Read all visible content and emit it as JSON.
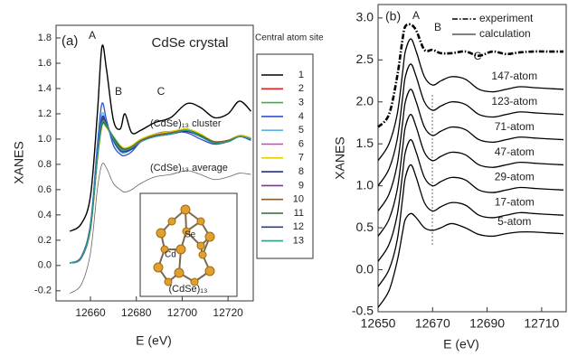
{
  "panels": [
    {
      "type": "line",
      "panel_label": "(a)",
      "title": "CdSe crystal",
      "xlabel": "E (eV)",
      "ylabel": "XANES",
      "annotations": [
        "A",
        "B",
        "C",
        "(CdSe)₁₃ cluster",
        "(CdSe)₁₃ average"
      ],
      "legend_title": "Central atom site",
      "inset_labels": [
        "Se",
        "Cd",
        "(CdSe)₁₃"
      ],
      "xlim": [
        12645,
        12731
      ],
      "xticks": [
        12660,
        12680,
        12700,
        12720
      ],
      "ylim": [
        -0.28,
        1.9
      ],
      "yticks": [
        -0.2,
        {
          "value": 0,
          "label": "0.0"
        },
        0.2,
        0.4,
        0.6,
        0.8,
        {
          "value": 1,
          "label": "1.0"
        },
        1.2,
        1.4,
        1.6,
        1.8
      ],
      "x": [
        12651,
        12656,
        12660,
        12663,
        12665,
        12667,
        12670,
        12673,
        12675,
        12678,
        12682,
        12688,
        12695,
        12702,
        12708,
        12714,
        12720,
        12725,
        12730
      ],
      "series": [
        {
          "name": "1",
          "color": "#000000",
          "values": [
            0.02,
            0.06,
            0.3,
            0.85,
            1.12,
            1.1,
            1.0,
            0.92,
            0.9,
            0.92,
            0.98,
            1.02,
            1.04,
            1.07,
            1.02,
            0.97,
            0.98,
            1.02,
            1.0
          ]
        },
        {
          "name": "2",
          "color": "#e02020",
          "values": [
            0.02,
            0.06,
            0.31,
            0.88,
            1.15,
            1.12,
            1.0,
            0.93,
            0.91,
            0.93,
            0.99,
            1.03,
            1.05,
            1.08,
            1.03,
            0.97,
            0.98,
            1.02,
            1.0
          ]
        },
        {
          "name": "3",
          "color": "#3cb043",
          "values": [
            0.02,
            0.06,
            0.29,
            0.84,
            1.1,
            1.1,
            1.02,
            0.95,
            0.93,
            0.94,
            0.99,
            1.03,
            1.05,
            1.08,
            1.04,
            0.98,
            0.99,
            1.03,
            1.01
          ]
        },
        {
          "name": "4",
          "color": "#3050d0",
          "values": [
            0.02,
            0.07,
            0.33,
            0.95,
            1.28,
            1.15,
            0.95,
            0.88,
            0.87,
            0.9,
            0.98,
            1.04,
            1.06,
            1.05,
            1.0,
            0.96,
            0.98,
            1.02,
            0.99
          ]
        },
        {
          "name": "5",
          "color": "#5ab4e0",
          "values": [
            0.02,
            0.06,
            0.32,
            0.9,
            1.2,
            1.12,
            0.98,
            0.9,
            0.89,
            0.92,
            0.98,
            1.02,
            1.04,
            1.07,
            1.02,
            0.97,
            0.98,
            1.02,
            1.0
          ]
        },
        {
          "name": "6",
          "color": "#d040c0",
          "values": [
            0.02,
            0.06,
            0.3,
            0.86,
            1.13,
            1.1,
            1.0,
            0.93,
            0.91,
            0.93,
            0.99,
            1.03,
            1.05,
            1.07,
            1.03,
            0.97,
            0.98,
            1.02,
            1.0
          ]
        },
        {
          "name": "7",
          "color": "#e8d000",
          "values": [
            0.02,
            0.06,
            0.28,
            0.83,
            1.1,
            1.09,
            1.01,
            0.95,
            0.93,
            0.95,
            1.0,
            1.04,
            1.06,
            1.08,
            1.04,
            0.98,
            0.99,
            1.03,
            1.01
          ]
        },
        {
          "name": "8",
          "color": "#203080",
          "values": [
            0.02,
            0.06,
            0.3,
            0.86,
            1.14,
            1.11,
            1.0,
            0.92,
            0.9,
            0.92,
            0.98,
            1.02,
            1.04,
            1.07,
            1.02,
            0.97,
            0.98,
            1.02,
            1.0
          ]
        },
        {
          "name": "9",
          "color": "#8030a0",
          "values": [
            0.02,
            0.06,
            0.31,
            0.87,
            1.16,
            1.11,
            0.99,
            0.91,
            0.9,
            0.92,
            0.98,
            1.02,
            1.04,
            1.06,
            1.02,
            0.97,
            0.98,
            1.02,
            1.0
          ]
        },
        {
          "name": "10",
          "color": "#8b5a2b",
          "values": [
            0.02,
            0.06,
            0.29,
            0.85,
            1.12,
            1.1,
            1.01,
            0.94,
            0.92,
            0.94,
            0.99,
            1.03,
            1.05,
            1.07,
            1.03,
            0.98,
            0.99,
            1.02,
            1.0
          ]
        },
        {
          "name": "11",
          "color": "#2e6b2e",
          "values": [
            0.02,
            0.06,
            0.3,
            0.85,
            1.11,
            1.1,
            1.01,
            0.94,
            0.92,
            0.93,
            0.98,
            1.02,
            1.04,
            1.07,
            1.03,
            0.97,
            0.98,
            1.02,
            1.0
          ]
        },
        {
          "name": "12",
          "color": "#283c8c",
          "values": [
            0.02,
            0.06,
            0.31,
            0.88,
            1.17,
            1.12,
            0.99,
            0.91,
            0.9,
            0.92,
            0.98,
            1.02,
            1.04,
            1.06,
            1.02,
            0.97,
            0.98,
            1.02,
            1.0
          ]
        },
        {
          "name": "13",
          "color": "#2a9d8f",
          "values": [
            0.02,
            0.06,
            0.3,
            0.86,
            1.13,
            1.11,
            1.0,
            0.92,
            0.91,
            0.93,
            0.98,
            1.02,
            1.04,
            1.07,
            1.02,
            0.97,
            0.98,
            1.02,
            1.0
          ]
        },
        {
          "color": "#666666",
          "values": [
            -0.22,
            -0.15,
            0.1,
            0.6,
            0.8,
            0.77,
            0.65,
            0.6,
            0.58,
            0.6,
            0.65,
            0.7,
            0.72,
            0.75,
            0.72,
            0.68,
            0.7,
            0.73,
            0.72
          ]
        },
        {
          "color": "#000000",
          "values": [
            0.27,
            0.33,
            0.55,
            1.2,
            1.73,
            1.55,
            1.15,
            1.08,
            1.2,
            1.05,
            1.07,
            1.13,
            1.17,
            1.28,
            1.25,
            1.17,
            1.2,
            1.3,
            1.22
          ]
        }
      ]
    },
    {
      "type": "line",
      "panel_label": "(b)",
      "xlabel": "E (eV)",
      "ylabel": "XANES",
      "annotations": [
        "A",
        "B",
        "C"
      ],
      "legend_calculation": "calculation",
      "xlim": [
        12650,
        12719
      ],
      "xticks": [
        12650,
        12670,
        12690,
        12710
      ],
      "ylim": [
        -0.5,
        3.16
      ],
      "yticks": [
        -0.5,
        {
          "value": 0,
          "label": "0.0"
        },
        0.5,
        {
          "value": 1,
          "label": "1.0"
        },
        1.5,
        {
          "value": 2,
          "label": "2.0"
        },
        2.5,
        {
          "value": 3,
          "label": "3.0"
        }
      ],
      "x": [
        12650,
        12654,
        12657,
        12659,
        12660,
        12662,
        12664,
        12667,
        12670,
        12673,
        12677,
        12682,
        12687,
        12692,
        12697,
        12702,
        12707,
        12712,
        12718
      ],
      "series": [
        {
          "name": "experiment",
          "color": "#000000",
          "values": [
            1.7,
            1.85,
            2.3,
            2.75,
            2.9,
            2.92,
            2.85,
            2.62,
            2.62,
            2.58,
            2.58,
            2.6,
            2.55,
            2.6,
            2.57,
            2.59,
            2.6,
            2.6,
            2.6
          ]
        },
        {
          "name": "147-atom",
          "color": "#000000",
          "values": [
            1.3,
            1.5,
            1.85,
            2.35,
            2.6,
            2.75,
            2.6,
            2.3,
            2.2,
            2.25,
            2.3,
            2.27,
            2.15,
            2.12,
            2.15,
            2.18,
            2.17,
            2.16,
            2.15
          ]
        },
        {
          "name": "123-atom",
          "color": "#000000",
          "values": [
            1.0,
            1.2,
            1.55,
            2.05,
            2.3,
            2.45,
            2.3,
            2.0,
            1.9,
            1.95,
            2.0,
            1.97,
            1.85,
            1.82,
            1.85,
            1.88,
            1.87,
            1.86,
            1.85
          ]
        },
        {
          "name": "71-atom",
          "color": "#000000",
          "values": [
            0.7,
            0.9,
            1.25,
            1.75,
            2.0,
            2.15,
            2.0,
            1.7,
            1.6,
            1.65,
            1.7,
            1.67,
            1.55,
            1.52,
            1.55,
            1.58,
            1.57,
            1.56,
            1.55
          ]
        },
        {
          "name": "47-atom",
          "color": "#000000",
          "values": [
            0.4,
            0.6,
            0.95,
            1.45,
            1.7,
            1.85,
            1.7,
            1.4,
            1.3,
            1.35,
            1.4,
            1.37,
            1.25,
            1.22,
            1.25,
            1.28,
            1.27,
            1.26,
            1.25
          ]
        },
        {
          "name": "29-atom",
          "color": "#000000",
          "values": [
            0.1,
            0.3,
            0.65,
            1.15,
            1.4,
            1.55,
            1.4,
            1.1,
            1.0,
            1.05,
            1.1,
            1.07,
            0.95,
            0.92,
            0.95,
            0.98,
            0.97,
            0.96,
            0.95
          ]
        },
        {
          "name": "17-atom",
          "color": "#000000",
          "values": [
            -0.2,
            0.0,
            0.35,
            0.85,
            1.1,
            1.25,
            1.1,
            0.8,
            0.7,
            0.75,
            0.8,
            0.77,
            0.65,
            0.62,
            0.65,
            0.68,
            0.67,
            0.66,
            0.65
          ]
        },
        {
          "name": "5-atom",
          "color": "#000000",
          "values": [
            -0.45,
            -0.25,
            0.1,
            0.45,
            0.6,
            0.67,
            0.62,
            0.5,
            0.47,
            0.5,
            0.55,
            0.5,
            0.42,
            0.4,
            0.43,
            0.45,
            0.45,
            0.44,
            0.43
          ]
        }
      ]
    }
  ]
}
